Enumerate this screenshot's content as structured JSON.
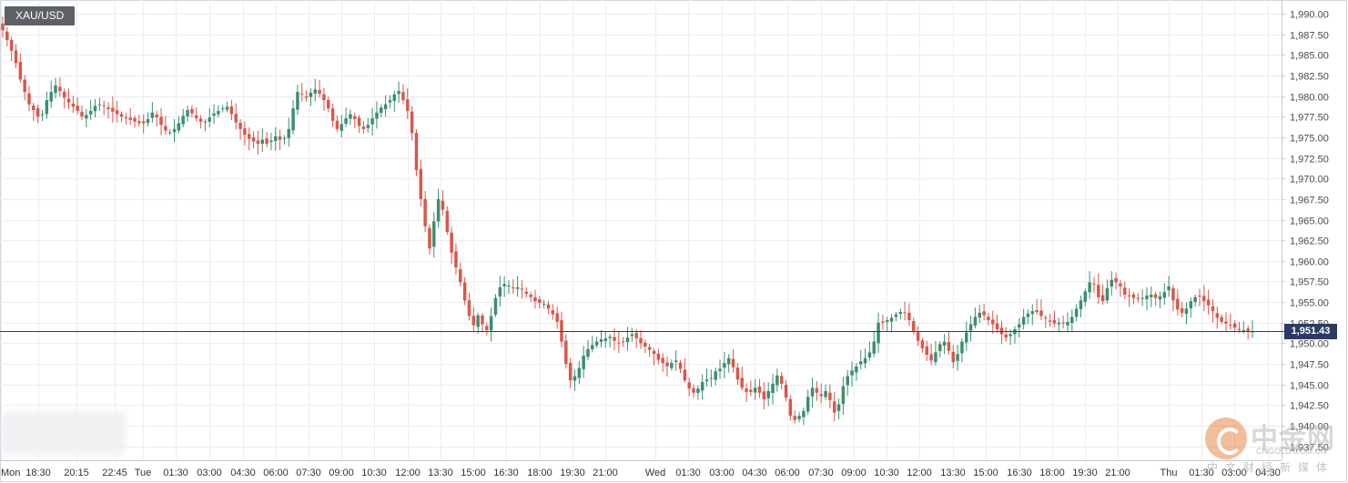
{
  "symbol": "XAU/USD",
  "last_price_label": "1,951.43",
  "colors": {
    "up": "#3b8f6e",
    "down": "#d9574a",
    "price_line": "#2c3a66",
    "grid": "#ececf2"
  },
  "watermark": {
    "brand": "中金网",
    "site": "CNGOLD.COM.CN",
    "sub": "中文财经新媒体"
  },
  "chart_data": {
    "type": "candlestick",
    "title": "",
    "last_price": 1951.43,
    "ylim": [
      1937.5,
      1991.5
    ],
    "yticks": [
      1990,
      1987.5,
      1985,
      1982.5,
      1980,
      1977.5,
      1975,
      1972.5,
      1970,
      1967.5,
      1965,
      1962.5,
      1960,
      1957.5,
      1955,
      1952.5,
      1950,
      1947.5,
      1945,
      1942.5,
      1940,
      1937.5
    ],
    "ytick_labels": [
      "1,990.00",
      "1,987.50",
      "1,985.00",
      "1,982.50",
      "1,980.00",
      "1,977.50",
      "1,975.00",
      "1,972.50",
      "1,970.00",
      "1,967.50",
      "1,965.00",
      "1,962.50",
      "1,960.00",
      "1,957.50",
      "1,955.00",
      "1,952.50",
      "1,950.00",
      "1,947.50",
      "1,945.00",
      "1,942.50",
      "1,940.00",
      "1,937.50"
    ],
    "xtick_labels": [
      "Mon",
      "18:30",
      "20:15",
      "22:45",
      "Tue",
      "01:30",
      "03:00",
      "04:30",
      "06:00",
      "07:30",
      "09:00",
      "10:30",
      "12:00",
      "13:30",
      "15:00",
      "16:30",
      "18:00",
      "19:30",
      "21:00",
      "Wed",
      "01:30",
      "03:00",
      "04:30",
      "06:00",
      "07:30",
      "09:00",
      "10:30",
      "12:00",
      "13:30",
      "15:00",
      "16:30",
      "18:00",
      "19:30",
      "21:00",
      "Thu",
      "01:30",
      "03:00",
      "04:30"
    ],
    "grid": true,
    "close_path": [
      1988,
      1986.8,
      1985.5,
      1984,
      1982,
      1980.5,
      1979,
      1978.3,
      1977.5,
      1977.8,
      1979.5,
      1980.5,
      1981.3,
      1980.6,
      1979.8,
      1979.2,
      1978.7,
      1978.2,
      1977.5,
      1977.7,
      1978.2,
      1978.8,
      1979,
      1978.8,
      1978.4,
      1978.1,
      1977.8,
      1977.5,
      1977.3,
      1977.1,
      1976.9,
      1976.7,
      1976.7,
      1977.2,
      1978,
      1977.4,
      1976.5,
      1975.8,
      1975.6,
      1976,
      1976.7,
      1977.6,
      1978.3,
      1977.9,
      1977.3,
      1976.9,
      1976.9,
      1977.4,
      1977.9,
      1978.2,
      1978.5,
      1978.7,
      1977.8,
      1976.8,
      1976,
      1975.3,
      1974.8,
      1974.5,
      1974.2,
      1974.7,
      1974.2,
      1974.6,
      1975.1,
      1974.7,
      1974.9,
      1976,
      1978.5,
      1980.5,
      1980.2,
      1979.8,
      1980.4,
      1980.8,
      1980.3,
      1979.5,
      1978.5,
      1977,
      1976,
      1976.6,
      1977.3,
      1977.8,
      1977.2,
      1976.4,
      1976,
      1976.5,
      1977.3,
      1978,
      1978.6,
      1979,
      1979.5,
      1980.2,
      1980.6,
      1979.5,
      1978.2,
      1975.5,
      1971,
      1967.5,
      1964.2,
      1961.5,
      1964.8,
      1967.5,
      1966.2,
      1963.5,
      1961,
      1959.2,
      1957.4,
      1955.2,
      1953.3,
      1952.2,
      1953.4,
      1952.3,
      1951.6,
      1953.3,
      1955.5,
      1956.8,
      1957.2,
      1957,
      1956.7,
      1956.8,
      1956.5,
      1956,
      1955.6,
      1955.1,
      1954.9,
      1954.8,
      1954.2,
      1953.5,
      1952.6,
      1950.2,
      1947.5,
      1945.5,
      1946,
      1947,
      1948.5,
      1949.3,
      1949.8,
      1950.2,
      1950.5,
      1950.6,
      1950.8,
      1950.3,
      1950,
      1950.2,
      1950.7,
      1951.1,
      1950.6,
      1950,
      1949.6,
      1949.2,
      1948.7,
      1948,
      1947.6,
      1947.2,
      1947.6,
      1947.9,
      1946.9,
      1945.5,
      1944.5,
      1944,
      1944.5,
      1945.3,
      1945.6,
      1945.8,
      1946.6,
      1946.9,
      1947.6,
      1948.2,
      1947.1,
      1945.6,
      1944.6,
      1944.1,
      1944.1,
      1944.6,
      1944,
      1943.2,
      1944.2,
      1945.1,
      1946.1,
      1945.1,
      1943.4,
      1941.2,
      1940.7,
      1941.2,
      1941.8,
      1943.5,
      1944.6,
      1944,
      1943.6,
      1944.2,
      1943.1,
      1941.6,
      1942.6,
      1944.8,
      1946,
      1946.7,
      1947.2,
      1947.8,
      1948.2,
      1948.9,
      1950.2,
      1952.5,
      1952.5,
      1952.8,
      1953.1,
      1953.5,
      1953.8,
      1953.7,
      1952.8,
      1951.5,
      1950.3,
      1949.4,
      1948.6,
      1947.9,
      1948.9,
      1949.9,
      1950.2,
      1949.1,
      1947.7,
      1948.7,
      1950.2,
      1951.3,
      1952.3,
      1953.2,
      1953.7,
      1953.4,
      1952.8,
      1952.3,
      1951.7,
      1951.1,
      1950.7,
      1951.1,
      1951.7,
      1952.3,
      1953.2,
      1953.6,
      1953.9,
      1953.8,
      1953.3,
      1953,
      1952.6,
      1952.4,
      1952.5,
      1952.4,
      1952.6,
      1953.2,
      1954.2,
      1955.2,
      1956.3,
      1957.4,
      1957.2,
      1955.6,
      1955.1,
      1956.7,
      1957.7,
      1957.4,
      1956.9,
      1955.9,
      1955.7,
      1955.5,
      1955.4,
      1955.5,
      1955.8,
      1955.9,
      1955.5,
      1955.7,
      1956.2,
      1956.9,
      1955.2,
      1954.1,
      1953.7,
      1954.2,
      1955.1,
      1955.6,
      1955.7,
      1955.1,
      1954.6,
      1953.9,
      1953.1,
      1952.6,
      1952.4,
      1952.2,
      1951.9,
      1951.6,
      1951.6,
      1951.5,
      1951.43
    ]
  }
}
